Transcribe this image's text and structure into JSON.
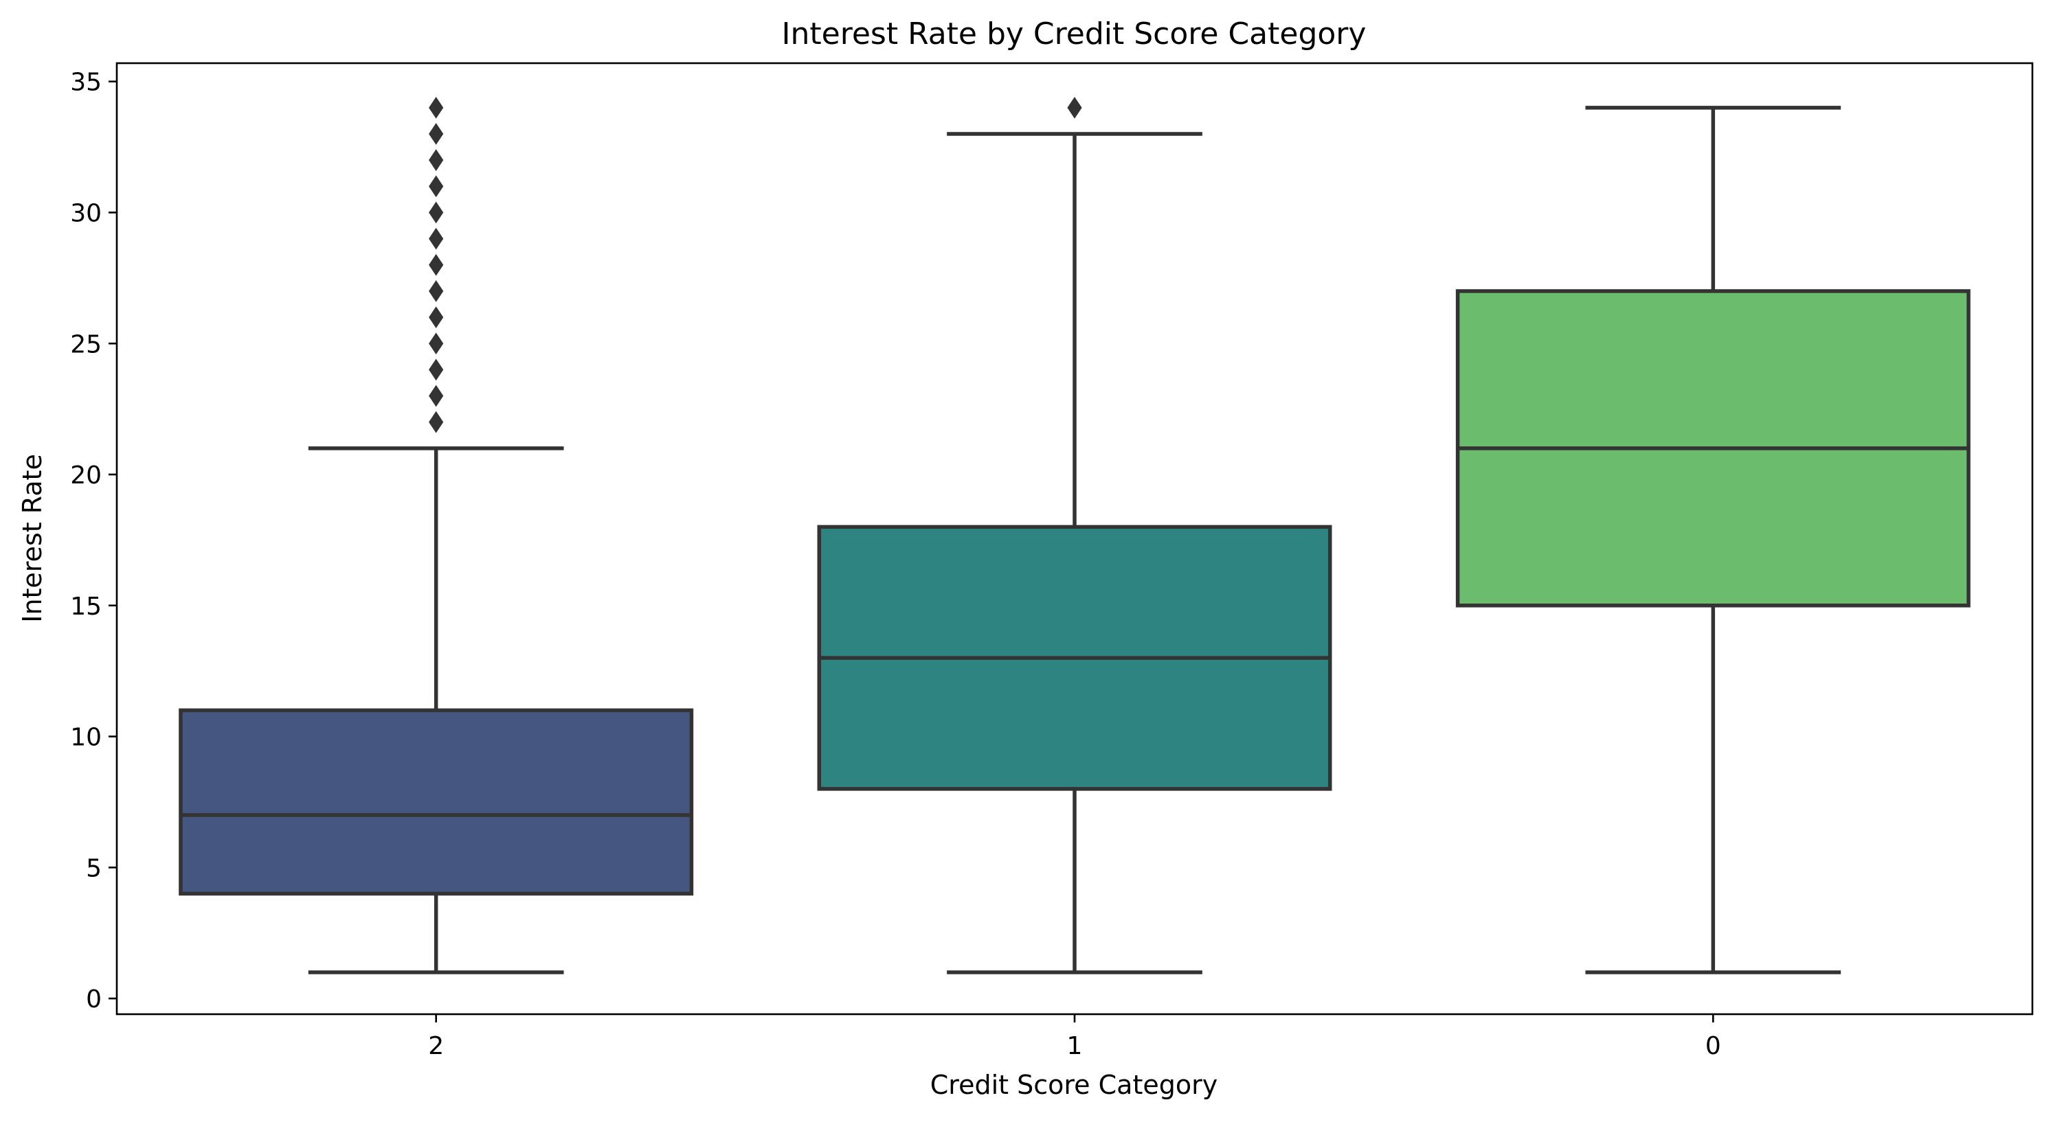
{
  "chart_data": {
    "type": "box",
    "title": "Interest Rate by Credit Score Category",
    "xlabel": "Credit Score Category",
    "ylabel": "Interest Rate",
    "ylim": [
      -0.6,
      35.7
    ],
    "yticks": [
      0,
      5,
      10,
      15,
      20,
      25,
      30,
      35
    ],
    "grid": false,
    "categories": [
      "2",
      "1",
      "0"
    ],
    "boxes": [
      {
        "category": "2",
        "whisker_low": 1,
        "q1": 4,
        "median": 7,
        "q3": 11,
        "whisker_high": 21,
        "outliers": [
          22,
          23,
          24,
          25,
          26,
          27,
          28,
          29,
          30,
          31,
          32,
          33,
          34
        ],
        "color": "#455681"
      },
      {
        "category": "1",
        "whisker_low": 1,
        "q1": 8,
        "median": 13,
        "q3": 18,
        "whisker_high": 33,
        "outliers": [
          34
        ],
        "color": "#2e8480"
      },
      {
        "category": "0",
        "whisker_low": 1,
        "q1": 15,
        "median": 21,
        "q3": 27,
        "whisker_high": 34,
        "outliers": [],
        "color": "#6bbd6d"
      }
    ]
  }
}
